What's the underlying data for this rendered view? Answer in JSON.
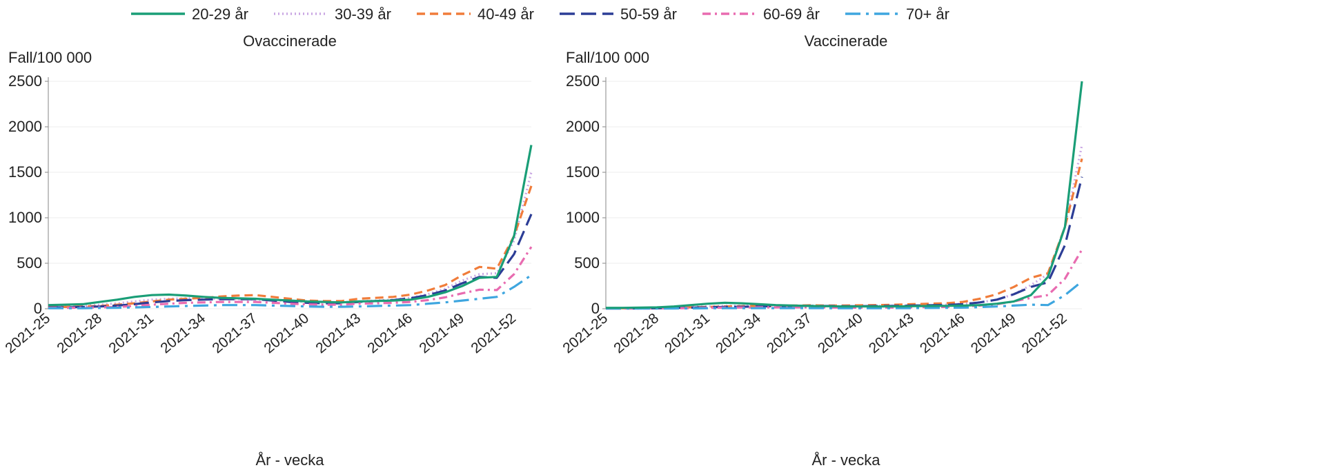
{
  "chart_data": {
    "type": "line",
    "legend_position": "top",
    "series_styles": [
      {
        "name": "20-29 år",
        "color": "#1a9e77",
        "dash": "solid"
      },
      {
        "name": "30-39 år",
        "color": "#c9a6e3",
        "dash": "dotted"
      },
      {
        "name": "40-49 år",
        "color": "#f07c3a",
        "dash": "dashed"
      },
      {
        "name": "50-59 år",
        "color": "#2c3d96",
        "dash": "longdash"
      },
      {
        "name": "60-69 år",
        "color": "#e86bb0",
        "dash": "dashdot"
      },
      {
        "name": "70+ år",
        "color": "#3ea6df",
        "dash": "longdashdot"
      }
    ],
    "x_ticks": [
      "2021-25",
      "2021-28",
      "2021-31",
      "2021-34",
      "2021-37",
      "2021-40",
      "2021-43",
      "2021-46",
      "2021-49",
      "2021-52"
    ],
    "x": [
      "2021-25",
      "2021-26",
      "2021-27",
      "2021-28",
      "2021-29",
      "2021-30",
      "2021-31",
      "2021-32",
      "2021-33",
      "2021-34",
      "2021-35",
      "2021-36",
      "2021-37",
      "2021-38",
      "2021-39",
      "2021-40",
      "2021-41",
      "2021-42",
      "2021-43",
      "2021-44",
      "2021-45",
      "2021-46",
      "2021-47",
      "2021-48",
      "2021-49",
      "2021-50",
      "2021-51",
      "2021-52",
      "2021-53"
    ],
    "y_ticks": [
      0,
      500,
      1000,
      1500,
      2000,
      2500
    ],
    "ylim": [
      0,
      2500
    ],
    "grid": true,
    "xlabel": "År - vecka",
    "ylabel": "Fall/100 000",
    "panels": [
      {
        "title": "Ovaccinerade",
        "series": [
          {
            "name": "20-29 år",
            "values": [
              40,
              45,
              50,
              75,
              100,
              130,
              150,
              155,
              145,
              130,
              120,
              115,
              110,
              100,
              90,
              80,
              75,
              70,
              80,
              85,
              90,
              100,
              130,
              180,
              250,
              340,
              350,
              800,
              1800
            ]
          },
          {
            "name": "30-39 år",
            "values": [
              25,
              25,
              30,
              45,
              60,
              80,
              100,
              110,
              115,
              115,
              110,
              105,
              100,
              95,
              85,
              75,
              70,
              70,
              80,
              90,
              100,
              120,
              160,
              220,
              310,
              380,
              390,
              750,
              1500
            ]
          },
          {
            "name": "40-49 år",
            "values": [
              20,
              20,
              25,
              30,
              45,
              60,
              80,
              100,
              110,
              120,
              135,
              145,
              150,
              130,
              110,
              90,
              85,
              85,
              110,
              120,
              130,
              155,
              200,
              260,
              370,
              460,
              440,
              800,
              1350
            ]
          },
          {
            "name": "50-59 år",
            "values": [
              15,
              15,
              20,
              25,
              35,
              50,
              70,
              85,
              95,
              100,
              105,
              105,
              105,
              90,
              75,
              65,
              60,
              60,
              75,
              85,
              95,
              115,
              150,
              200,
              280,
              350,
              340,
              600,
              1040
            ]
          },
          {
            "name": "60-69 år",
            "values": [
              10,
              10,
              12,
              15,
              20,
              30,
              45,
              55,
              65,
              70,
              75,
              75,
              75,
              65,
              55,
              48,
              45,
              45,
              55,
              60,
              65,
              75,
              95,
              125,
              170,
              210,
              205,
              380,
              680
            ]
          },
          {
            "name": "70+ år",
            "values": [
              5,
              5,
              5,
              8,
              10,
              15,
              20,
              25,
              30,
              35,
              40,
              40,
              40,
              35,
              30,
              25,
              22,
              22,
              25,
              30,
              35,
              40,
              55,
              70,
              90,
              110,
              130,
              240,
              370
            ]
          }
        ]
      },
      {
        "title": "Vaccinerade",
        "series": [
          {
            "name": "20-29 år",
            "values": [
              10,
              10,
              12,
              15,
              25,
              40,
              55,
              65,
              60,
              50,
              40,
              35,
              30,
              28,
              25,
              25,
              25,
              25,
              28,
              30,
              32,
              35,
              40,
              55,
              80,
              150,
              350,
              900,
              2500
            ]
          },
          {
            "name": "30-39 år",
            "values": [
              5,
              5,
              6,
              8,
              12,
              18,
              25,
              30,
              32,
              32,
              32,
              30,
              30,
              28,
              28,
              28,
              30,
              32,
              35,
              40,
              45,
              55,
              70,
              100,
              160,
              260,
              380,
              900,
              1800
            ]
          },
          {
            "name": "40-49 år",
            "values": [
              5,
              5,
              6,
              8,
              12,
              16,
              20,
              25,
              28,
              30,
              32,
              35,
              38,
              35,
              35,
              38,
              40,
              45,
              50,
              55,
              60,
              75,
              110,
              160,
              240,
              340,
              390,
              900,
              1650
            ]
          },
          {
            "name": "50-59 år",
            "values": [
              3,
              3,
              4,
              5,
              8,
              12,
              16,
              20,
              22,
              25,
              28,
              30,
              32,
              30,
              28,
              28,
              30,
              32,
              35,
              38,
              42,
              50,
              70,
              100,
              160,
              240,
              290,
              700,
              1450
            ]
          },
          {
            "name": "60-69 år",
            "values": [
              2,
              2,
              2,
              3,
              5,
              7,
              10,
              12,
              14,
              15,
              15,
              15,
              15,
              14,
              12,
              12,
              12,
              14,
              16,
              18,
              20,
              25,
              35,
              50,
              80,
              120,
              150,
              330,
              650
            ]
          },
          {
            "name": "70+ år",
            "values": [
              2,
              2,
              2,
              2,
              3,
              4,
              5,
              6,
              6,
              6,
              6,
              6,
              6,
              6,
              5,
              5,
              5,
              6,
              7,
              8,
              10,
              12,
              18,
              25,
              35,
              45,
              40,
              150,
              300
            ]
          }
        ]
      }
    ]
  }
}
